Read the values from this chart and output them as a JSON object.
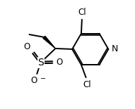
{
  "bg_color": "#ffffff",
  "bond_color": "#000000",
  "bond_lw": 1.4,
  "font_size": 8.5,
  "fig_w": 1.91,
  "fig_h": 1.55,
  "dpi": 100,
  "xlim": [
    0,
    10
  ],
  "ylim": [
    0,
    8
  ]
}
